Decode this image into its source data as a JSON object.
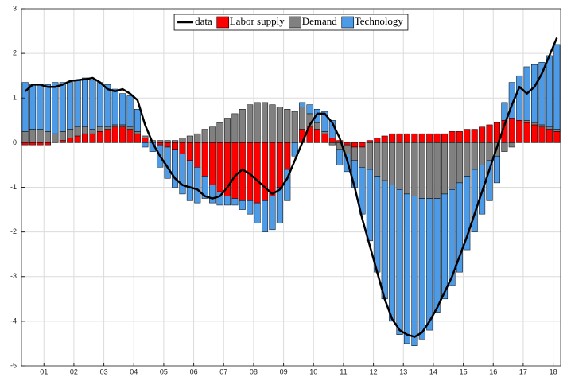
{
  "chart_data": {
    "type": "bar",
    "stacked": true,
    "x": [
      0.375,
      0.625,
      0.875,
      1.125,
      1.375,
      1.625,
      1.875,
      2.125,
      2.375,
      2.625,
      2.875,
      3.125,
      3.375,
      3.625,
      3.875,
      4.125,
      4.375,
      4.625,
      4.875,
      5.125,
      5.375,
      5.625,
      5.875,
      6.125,
      6.375,
      6.625,
      6.875,
      7.125,
      7.375,
      7.625,
      7.875,
      8.125,
      8.375,
      8.625,
      8.875,
      9.125,
      9.375,
      9.625,
      9.875,
      10.125,
      10.375,
      10.625,
      10.875,
      11.125,
      11.375,
      11.625,
      11.875,
      12.125,
      12.375,
      12.625,
      12.875,
      13.125,
      13.375,
      13.625,
      13.875,
      14.125,
      14.375,
      14.625,
      14.875,
      15.125,
      15.375,
      15.625,
      15.875,
      16.125,
      16.375,
      16.625,
      16.875,
      17.125,
      17.375,
      17.625,
      17.875,
      18.125
    ],
    "series": [
      {
        "name": "data",
        "type": "line",
        "color": "#000000",
        "values": [
          1.15,
          1.3,
          1.3,
          1.25,
          1.25,
          1.3,
          1.38,
          1.4,
          1.42,
          1.45,
          1.35,
          1.2,
          1.15,
          1.2,
          1.1,
          0.95,
          0.4,
          0.0,
          -0.3,
          -0.55,
          -0.8,
          -0.95,
          -1.0,
          -1.05,
          -1.2,
          -1.25,
          -1.2,
          -1.0,
          -0.75,
          -0.6,
          -0.7,
          -0.85,
          -1.0,
          -1.15,
          -1.05,
          -0.8,
          -0.4,
          0.0,
          0.4,
          0.65,
          0.65,
          0.45,
          0.1,
          -0.4,
          -1.0,
          -1.7,
          -2.3,
          -2.9,
          -3.5,
          -3.95,
          -4.2,
          -4.3,
          -4.35,
          -4.25,
          -4.0,
          -3.7,
          -3.35,
          -3.0,
          -2.55,
          -2.1,
          -1.6,
          -1.1,
          -0.6,
          -0.1,
          0.4,
          0.85,
          1.25,
          1.1,
          1.25,
          1.55,
          1.95,
          2.35
        ]
      },
      {
        "name": "Labor supply",
        "type": "bar",
        "color": "#ff0000",
        "values": [
          -0.05,
          -0.05,
          -0.05,
          -0.05,
          0,
          0.05,
          0.1,
          0.15,
          0.2,
          0.2,
          0.25,
          0.3,
          0.35,
          0.35,
          0.3,
          0.2,
          0.1,
          0,
          -0.05,
          -0.1,
          -0.15,
          -0.25,
          -0.4,
          -0.55,
          -0.75,
          -0.95,
          -1.1,
          -1.2,
          -1.25,
          -1.3,
          -1.3,
          -1.35,
          -1.3,
          -1.2,
          -1.0,
          -0.6,
          0,
          0.3,
          0.35,
          0.3,
          0.2,
          0.1,
          0.05,
          -0.05,
          -0.1,
          -0.1,
          0.05,
          0.1,
          0.15,
          0.2,
          0.2,
          0.2,
          0.2,
          0.2,
          0.2,
          0.2,
          0.2,
          0.25,
          0.25,
          0.3,
          0.3,
          0.35,
          0.4,
          0.45,
          0.5,
          0.55,
          0.5,
          0.45,
          0.4,
          0.35,
          0.3,
          0.25
        ]
      },
      {
        "name": "Demand",
        "type": "bar",
        "color": "#808080",
        "values": [
          0.25,
          0.3,
          0.3,
          0.25,
          0.2,
          0.2,
          0.2,
          0.2,
          0.15,
          0.1,
          0.1,
          0.05,
          0.05,
          0.05,
          0.05,
          0.05,
          0.05,
          0.05,
          0.05,
          0.05,
          0.05,
          0.1,
          0.15,
          0.2,
          0.3,
          0.35,
          0.45,
          0.55,
          0.65,
          0.75,
          0.85,
          0.9,
          0.9,
          0.85,
          0.8,
          0.75,
          0.7,
          0.5,
          0.3,
          0.15,
          0.05,
          -0.05,
          -0.15,
          -0.2,
          -0.3,
          -0.45,
          -0.6,
          -0.75,
          -0.85,
          -0.95,
          -1.05,
          -1.15,
          -1.2,
          -1.25,
          -1.25,
          -1.25,
          -1.15,
          -1.05,
          -0.9,
          -0.75,
          -0.6,
          -0.5,
          -0.4,
          -0.3,
          -0.2,
          -0.1,
          0.0,
          0.05,
          0.05,
          0.05,
          0.05,
          0.05
        ]
      },
      {
        "name": "Technology",
        "type": "bar",
        "color": "#4d9be6",
        "values": [
          1.1,
          1.0,
          1.0,
          1.05,
          1.15,
          1.1,
          1.05,
          1.05,
          1.1,
          1.1,
          1.0,
          0.95,
          0.8,
          0.7,
          0.7,
          0.5,
          -0.1,
          -0.2,
          -0.5,
          -0.7,
          -0.85,
          -0.9,
          -0.9,
          -0.8,
          -0.5,
          -0.4,
          -0.3,
          -0.2,
          -0.15,
          -0.2,
          -0.3,
          -0.45,
          -0.7,
          -0.75,
          -0.8,
          -0.7,
          -0.3,
          0.1,
          0.2,
          0.3,
          0.45,
          0.4,
          -0.35,
          -0.4,
          -0.6,
          -1.05,
          -1.6,
          -2.15,
          -2.65,
          -3.05,
          -3.25,
          -3.35,
          -3.35,
          -3.15,
          -2.95,
          -2.55,
          -2.35,
          -2.15,
          -2.0,
          -1.65,
          -1.4,
          -1.1,
          -0.9,
          -0.6,
          0.4,
          0.8,
          1.0,
          1.2,
          1.3,
          1.4,
          1.6,
          1.9
        ]
      }
    ],
    "xlim": [
      0.25,
      18.25
    ],
    "xticks": [
      {
        "value": 1,
        "label": "01"
      },
      {
        "value": 2,
        "label": "02"
      },
      {
        "value": 3,
        "label": "03"
      },
      {
        "value": 4,
        "label": "04"
      },
      {
        "value": 5,
        "label": "05"
      },
      {
        "value": 6,
        "label": "06"
      },
      {
        "value": 7,
        "label": "07"
      },
      {
        "value": 8,
        "label": "08"
      },
      {
        "value": 9,
        "label": "09"
      },
      {
        "value": 10,
        "label": "10"
      },
      {
        "value": 11,
        "label": "11"
      },
      {
        "value": 12,
        "label": "12"
      },
      {
        "value": 13,
        "label": "13"
      },
      {
        "value": 14,
        "label": "14"
      },
      {
        "value": 15,
        "label": "15"
      },
      {
        "value": 16,
        "label": "16"
      },
      {
        "value": 17,
        "label": "17"
      },
      {
        "value": 18,
        "label": "18"
      }
    ],
    "ylim": [
      -5,
      3
    ],
    "yticks": [
      -5,
      -4,
      -3,
      -2,
      -1,
      0,
      1,
      2,
      3
    ],
    "grid": true,
    "legend": "north"
  }
}
